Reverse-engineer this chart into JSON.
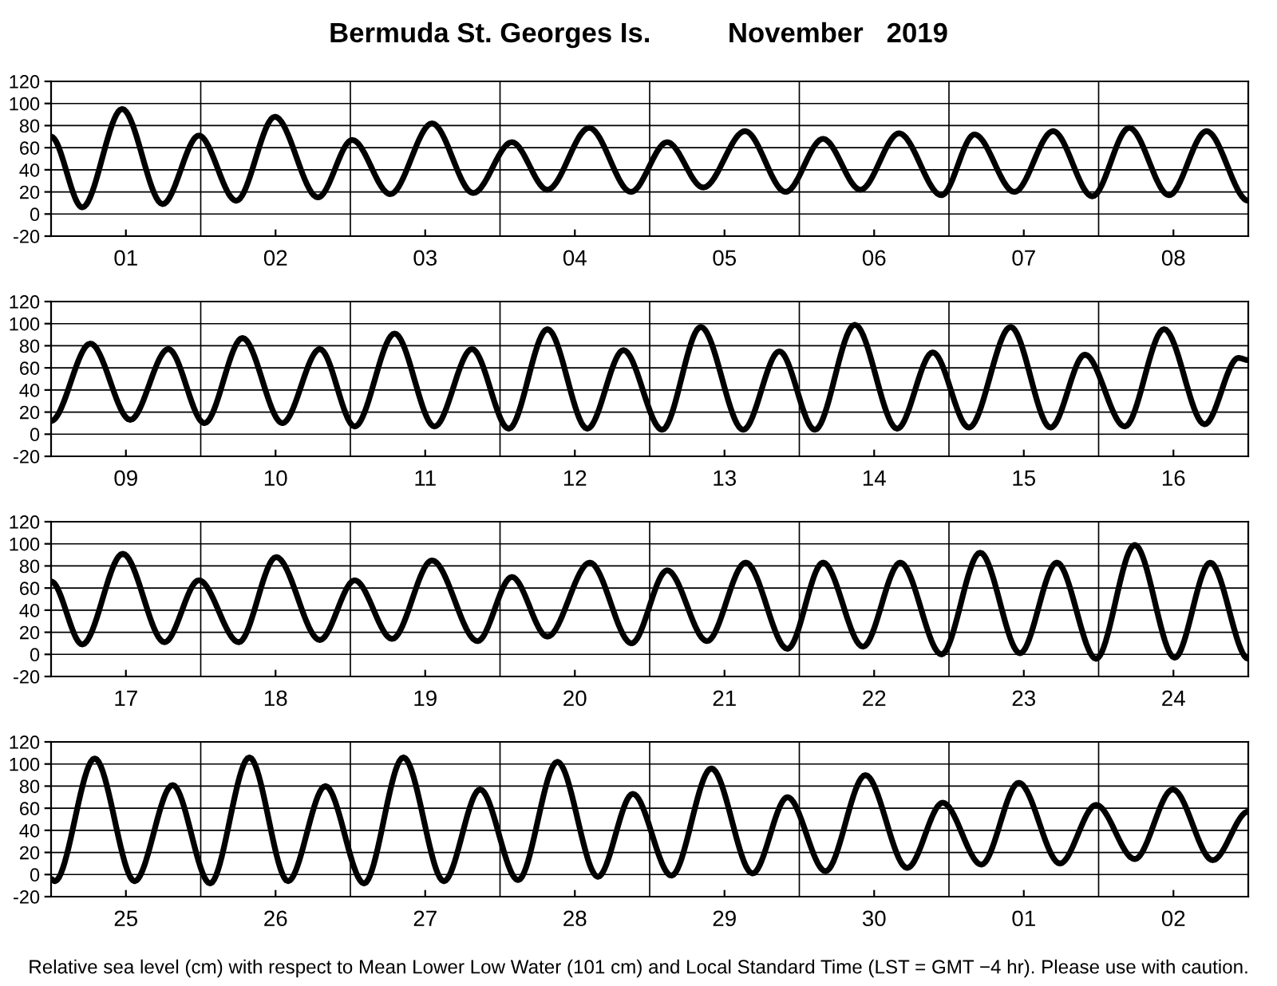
{
  "chart_data": [
    {
      "type": "line",
      "title": "Bermuda St. Georges Is.          November   2019",
      "x": [
        "2019-11-01T00:00",
        "2019-11-01T05:00",
        "2019-11-01T11:24",
        "2019-11-01T17:54",
        "2019-11-01T23:42",
        "2019-11-02T05:42",
        "2019-11-02T11:54",
        "2019-11-02T18:48",
        "2019-11-03T00:18",
        "2019-11-03T06:24",
        "2019-11-03T13:06",
        "2019-11-03T19:42",
        "2019-11-04T01:54",
        "2019-11-04T07:36",
        "2019-11-04T14:18",
        "2019-11-04T21:00",
        "2019-11-05T02:48",
        "2019-11-05T08:36",
        "2019-11-05T15:18",
        "2019-11-05T21:48",
        "2019-11-06T03:48",
        "2019-11-06T09:48",
        "2019-11-06T16:00",
        "2019-11-06T22:48",
        "2019-11-07T04:06",
        "2019-11-07T10:30",
        "2019-11-07T16:42",
        "2019-11-07T23:00",
        "2019-11-08T04:54",
        "2019-11-08T11:18",
        "2019-11-08T17:18",
        "2019-11-09T00:00"
      ],
      "series": [
        {
          "color": "#000000",
          "values": [
            70,
            6,
            95,
            9,
            71,
            12,
            88,
            15,
            67,
            18,
            82,
            19,
            65,
            22,
            78,
            20,
            65,
            24,
            75,
            20,
            68,
            22,
            73,
            17,
            72,
            20,
            75,
            16,
            78,
            17,
            75,
            12
          ]
        }
      ],
      "xlim": [
        "2019-11-01T00:00",
        "2019-11-09T00:00"
      ],
      "xticks": [
        {
          "value": "2019-11-01T12:00",
          "label": "01"
        },
        {
          "value": "2019-11-02T12:00",
          "label": "02"
        },
        {
          "value": "2019-11-03T12:00",
          "label": "03"
        },
        {
          "value": "2019-11-04T12:00",
          "label": "04"
        },
        {
          "value": "2019-11-05T12:00",
          "label": "05"
        },
        {
          "value": "2019-11-06T12:00",
          "label": "06"
        },
        {
          "value": "2019-11-07T12:00",
          "label": "07"
        },
        {
          "value": "2019-11-08T12:00",
          "label": "08"
        }
      ],
      "ylim": [
        -20,
        120
      ],
      "yticks": [
        -20,
        0,
        20,
        40,
        60,
        80,
        100,
        120
      ],
      "grid": "y",
      "line_style": "solid",
      "ref_lines": [
        {
          "axis": "x",
          "value": "2019-11-02T00:00"
        },
        {
          "axis": "x",
          "value": "2019-11-03T00:00"
        },
        {
          "axis": "x",
          "value": "2019-11-04T00:00"
        },
        {
          "axis": "x",
          "value": "2019-11-05T00:00"
        },
        {
          "axis": "x",
          "value": "2019-11-06T00:00"
        },
        {
          "axis": "x",
          "value": "2019-11-07T00:00"
        },
        {
          "axis": "x",
          "value": "2019-11-08T00:00"
        }
      ]
    },
    {
      "type": "line",
      "x": [
        "2019-11-09T00:00",
        "2019-11-09T06:18",
        "2019-11-09T12:42",
        "2019-11-09T18:48",
        "2019-11-10T00:36",
        "2019-11-10T06:42",
        "2019-11-10T13:06",
        "2019-11-10T19:06",
        "2019-11-11T00:42",
        "2019-11-11T07:06",
        "2019-11-11T13:30",
        "2019-11-11T19:30",
        "2019-11-12T01:24",
        "2019-11-12T07:36",
        "2019-11-12T14:00",
        "2019-11-12T19:48",
        "2019-11-13T02:00",
        "2019-11-13T08:12",
        "2019-11-13T15:00",
        "2019-11-13T20:48",
        "2019-11-14T02:30",
        "2019-11-14T08:54",
        "2019-11-14T15:42",
        "2019-11-14T21:24",
        "2019-11-15T03:12",
        "2019-11-15T09:54",
        "2019-11-15T16:18",
        "2019-11-15T21:48",
        "2019-11-16T04:12",
        "2019-11-16T10:30",
        "2019-11-16T17:00",
        "2019-11-16T22:24",
        "2019-11-17T00:00"
      ],
      "series": [
        {
          "color": "#000000",
          "values": [
            12,
            82,
            13,
            77,
            10,
            87,
            10,
            77,
            7,
            91,
            7,
            77,
            5,
            95,
            5,
            76,
            4,
            97,
            4,
            75,
            4,
            99,
            5,
            74,
            6,
            97,
            6,
            72,
            7,
            95,
            9,
            69,
            67
          ]
        }
      ],
      "xlim": [
        "2019-11-09T00:00",
        "2019-11-17T00:00"
      ],
      "xticks": [
        {
          "value": "2019-11-09T12:00",
          "label": "09"
        },
        {
          "value": "2019-11-10T12:00",
          "label": "10"
        },
        {
          "value": "2019-11-11T12:00",
          "label": "11"
        },
        {
          "value": "2019-11-12T12:00",
          "label": "12"
        },
        {
          "value": "2019-11-13T12:00",
          "label": "13"
        },
        {
          "value": "2019-11-14T12:00",
          "label": "14"
        },
        {
          "value": "2019-11-15T12:00",
          "label": "15"
        },
        {
          "value": "2019-11-16T12:00",
          "label": "16"
        }
      ],
      "ylim": [
        -20,
        120
      ],
      "yticks": [
        -20,
        0,
        20,
        40,
        60,
        80,
        100,
        120
      ],
      "grid": "y",
      "line_style": "solid",
      "ref_lines": [
        {
          "axis": "x",
          "value": "2019-11-10T00:00"
        },
        {
          "axis": "x",
          "value": "2019-11-11T00:00"
        },
        {
          "axis": "x",
          "value": "2019-11-12T00:00"
        },
        {
          "axis": "x",
          "value": "2019-11-13T00:00"
        },
        {
          "axis": "x",
          "value": "2019-11-14T00:00"
        },
        {
          "axis": "x",
          "value": "2019-11-15T00:00"
        },
        {
          "axis": "x",
          "value": "2019-11-16T00:00"
        }
      ]
    },
    {
      "type": "line",
      "x": [
        "2019-11-17T00:00",
        "2019-11-17T05:00",
        "2019-11-17T11:30",
        "2019-11-17T18:12",
        "2019-11-17T23:42",
        "2019-11-18T06:06",
        "2019-11-18T12:06",
        "2019-11-18T19:06",
        "2019-11-19T00:42",
        "2019-11-19T06:42",
        "2019-11-19T13:06",
        "2019-11-19T20:24",
        "2019-11-20T01:54",
        "2019-11-20T07:36",
        "2019-11-20T14:24",
        "2019-11-20T21:06",
        "2019-11-21T02:48",
        "2019-11-21T09:12",
        "2019-11-21T15:24",
        "2019-11-21T22:06",
        "2019-11-22T03:48",
        "2019-11-22T10:12",
        "2019-11-22T16:12",
        "2019-11-22T22:48",
        "2019-11-23T05:00",
        "2019-11-23T11:24",
        "2019-11-23T17:18",
        "2019-11-23T23:36",
        "2019-11-24T05:48",
        "2019-11-24T12:12",
        "2019-11-24T17:54",
        "2019-11-25T00:00"
      ],
      "series": [
        {
          "color": "#000000",
          "values": [
            66,
            9,
            91,
            11,
            67,
            11,
            88,
            13,
            67,
            14,
            85,
            12,
            70,
            16,
            83,
            10,
            76,
            12,
            83,
            5,
            83,
            7,
            83,
            0,
            92,
            1,
            83,
            -4,
            99,
            -3,
            83,
            -4
          ]
        }
      ],
      "xlim": [
        "2019-11-17T00:00",
        "2019-11-25T00:00"
      ],
      "xticks": [
        {
          "value": "2019-11-17T12:00",
          "label": "17"
        },
        {
          "value": "2019-11-18T12:00",
          "label": "18"
        },
        {
          "value": "2019-11-19T12:00",
          "label": "19"
        },
        {
          "value": "2019-11-20T12:00",
          "label": "20"
        },
        {
          "value": "2019-11-21T12:00",
          "label": "21"
        },
        {
          "value": "2019-11-22T12:00",
          "label": "22"
        },
        {
          "value": "2019-11-23T12:00",
          "label": "23"
        },
        {
          "value": "2019-11-24T12:00",
          "label": "24"
        }
      ],
      "ylim": [
        -20,
        120
      ],
      "yticks": [
        -20,
        0,
        20,
        40,
        60,
        80,
        100,
        120
      ],
      "grid": "y",
      "line_style": "solid",
      "ref_lines": [
        {
          "axis": "x",
          "value": "2019-11-18T00:00"
        },
        {
          "axis": "x",
          "value": "2019-11-19T00:00"
        },
        {
          "axis": "x",
          "value": "2019-11-20T00:00"
        },
        {
          "axis": "x",
          "value": "2019-11-21T00:00"
        },
        {
          "axis": "x",
          "value": "2019-11-22T00:00"
        },
        {
          "axis": "x",
          "value": "2019-11-23T00:00"
        },
        {
          "axis": "x",
          "value": "2019-11-24T00:00"
        }
      ]
    },
    {
      "type": "line",
      "x": [
        "2019-11-25T00:00",
        "2019-11-25T00:36",
        "2019-11-25T07:00",
        "2019-11-25T13:24",
        "2019-11-25T19:30",
        "2019-11-26T01:30",
        "2019-11-26T07:48",
        "2019-11-26T14:00",
        "2019-11-26T20:00",
        "2019-11-27T02:12",
        "2019-11-27T08:30",
        "2019-11-27T15:00",
        "2019-11-27T20:48",
        "2019-11-28T02:54",
        "2019-11-28T09:12",
        "2019-11-28T15:42",
        "2019-11-28T21:18",
        "2019-11-29T03:30",
        "2019-11-29T09:54",
        "2019-11-29T16:30",
        "2019-11-29T22:06",
        "2019-11-30T04:12",
        "2019-11-30T10:36",
        "2019-11-30T17:18",
        "2019-11-30T23:00",
        "2019-12-01T05:12",
        "2019-12-01T11:12",
        "2019-12-01T17:48",
        "2019-12-01T23:36",
        "2019-12-02T05:48",
        "2019-12-02T11:54",
        "2019-12-02T18:18",
        "2019-12-03T00:00"
      ],
      "series": [
        {
          "color": "#000000",
          "values": [
            -4,
            -6,
            105,
            -6,
            81,
            -8,
            106,
            -6,
            80,
            -8,
            106,
            -6,
            77,
            -5,
            102,
            -2,
            73,
            -1,
            96,
            1,
            70,
            3,
            90,
            6,
            65,
            9,
            83,
            10,
            63,
            14,
            77,
            13,
            57
          ]
        }
      ],
      "xlim": [
        "2019-11-25T00:00",
        "2019-12-03T00:00"
      ],
      "xticks": [
        {
          "value": "2019-11-25T12:00",
          "label": "25"
        },
        {
          "value": "2019-11-26T12:00",
          "label": "26"
        },
        {
          "value": "2019-11-27T12:00",
          "label": "27"
        },
        {
          "value": "2019-11-28T12:00",
          "label": "28"
        },
        {
          "value": "2019-11-29T12:00",
          "label": "29"
        },
        {
          "value": "2019-11-30T12:00",
          "label": "30"
        },
        {
          "value": "2019-12-01T12:00",
          "label": "01"
        },
        {
          "value": "2019-12-02T12:00",
          "label": "02"
        }
      ],
      "ylim": [
        -20,
        120
      ],
      "yticks": [
        -20,
        0,
        20,
        40,
        60,
        80,
        100,
        120
      ],
      "grid": "y",
      "line_style": "solid",
      "ref_lines": [
        {
          "axis": "x",
          "value": "2019-11-26T00:00"
        },
        {
          "axis": "x",
          "value": "2019-11-27T00:00"
        },
        {
          "axis": "x",
          "value": "2019-11-28T00:00"
        },
        {
          "axis": "x",
          "value": "2019-11-29T00:00"
        },
        {
          "axis": "x",
          "value": "2019-11-30T00:00"
        },
        {
          "axis": "x",
          "value": "2019-12-01T00:00"
        },
        {
          "axis": "x",
          "value": "2019-12-02T00:00"
        }
      ],
      "annotations": [
        "Relative sea level (cm) with respect to Mean Lower Low Water (101 cm) and Local Standard Time (LST = GMT −4 hr). Please use with caution."
      ]
    }
  ]
}
